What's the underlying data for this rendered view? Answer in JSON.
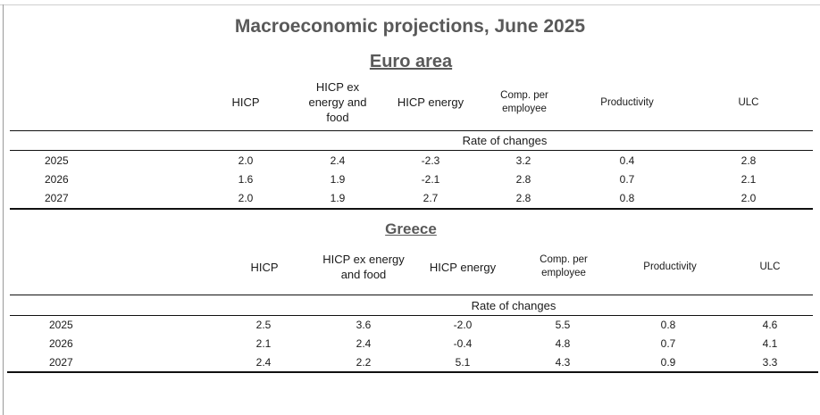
{
  "title": "Macroeconomic projections, June 2025",
  "euro_area": {
    "heading": "Euro area",
    "columns": [
      "HICP",
      "HICP ex energy and food",
      "HICP energy",
      "Comp. per employee",
      "Productivity",
      "ULC"
    ],
    "rate_label": "Rate of changes",
    "rows": [
      {
        "year": "2025",
        "values": [
          "2.0",
          "2.4",
          "-2.3",
          "3.2",
          "0.4",
          "2.8"
        ]
      },
      {
        "year": "2026",
        "values": [
          "1.6",
          "1.9",
          "-2.1",
          "2.8",
          "0.7",
          "2.1"
        ]
      },
      {
        "year": "2027",
        "values": [
          "2.0",
          "1.9",
          "2.7",
          "2.8",
          "0.8",
          "2.0"
        ]
      }
    ]
  },
  "greece": {
    "heading": "Greece",
    "columns": [
      "HICP",
      "HICP ex energy and food",
      "HICP energy",
      "Comp. per employee",
      "Productivity",
      "ULC"
    ],
    "rate_label": "Rate of changes",
    "rows": [
      {
        "year": "2025",
        "values": [
          "2.5",
          "3.6",
          "-2.0",
          "5.5",
          "0.8",
          "4.6"
        ]
      },
      {
        "year": "2026",
        "values": [
          "2.1",
          "2.4",
          "-0.4",
          "4.8",
          "0.7",
          "4.1"
        ]
      },
      {
        "year": "2027",
        "values": [
          "2.4",
          "2.2",
          "5.1",
          "4.3",
          "0.9",
          "3.3"
        ]
      }
    ]
  }
}
